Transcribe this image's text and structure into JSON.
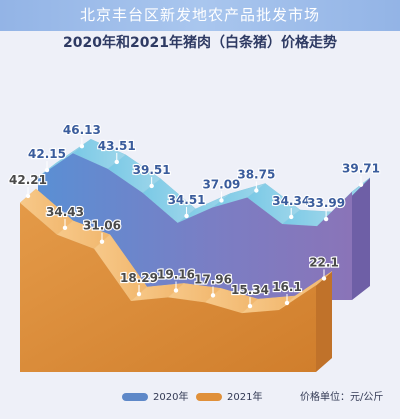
{
  "header": {
    "banner": "北京丰台区新发地农产品批发市场"
  },
  "chart_data": {
    "type": "area",
    "title": "2020年和2021年猪肉（白条猪）价格走势",
    "series": [
      {
        "name": "2020年",
        "color": "#5e88c8",
        "values": [
          42.15,
          46.13,
          43.51,
          39.51,
          34.51,
          37.09,
          38.75,
          34.34,
          33.99,
          39.71
        ]
      },
      {
        "name": "2021年",
        "color": "#e0903a",
        "values": [
          42.21,
          34.43,
          31.06,
          18.29,
          19.16,
          17.96,
          15.34,
          16.1,
          22.1
        ]
      }
    ],
    "unit": "价格单位：元/公斤",
    "grid": false,
    "legend": "bottom"
  }
}
